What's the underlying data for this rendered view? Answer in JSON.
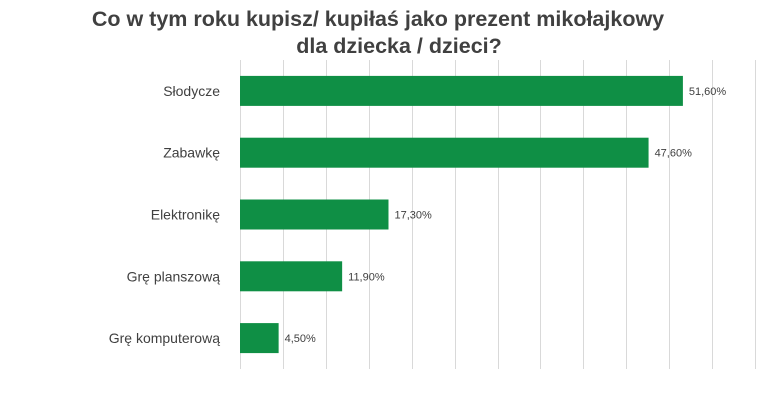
{
  "chart_data": {
    "type": "bar",
    "orientation": "horizontal",
    "title_line1": "Co w tym  roku kupisz/ kupiłaś jako prezent mikołajkowy",
    "title_line2": "dla dziecka / dzieci?",
    "categories": [
      "Słodycze",
      "Zabawkę",
      "Elektronikę",
      "Grę planszową",
      "Grę komputerową"
    ],
    "values": [
      51.6,
      47.6,
      17.3,
      11.9,
      4.5
    ],
    "value_labels": [
      "51,60%",
      "47,60%",
      "17,30%",
      "11,90%",
      "4,50%"
    ],
    "xlim": [
      0,
      60
    ],
    "vertical_gridlines": true,
    "gridline_step": 5,
    "bar_color": "#0f8f45",
    "gridline_color": "#d9d9d9"
  }
}
